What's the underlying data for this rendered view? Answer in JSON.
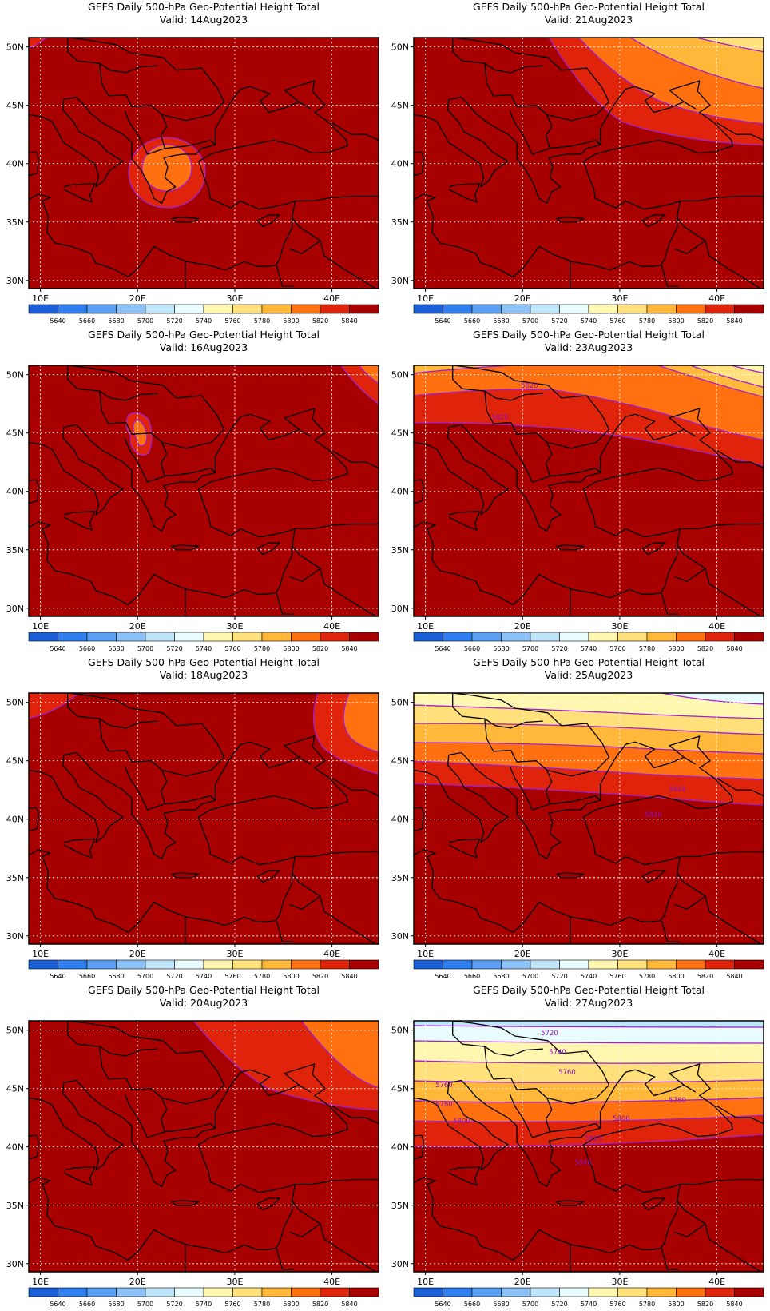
{
  "panel_title": "GEFS Daily 500-hPa Geo-Potential Height Total",
  "x_ticks": [
    "10E",
    "20E",
    "30E",
    "40E"
  ],
  "y_ticks": [
    "50N",
    "45N",
    "40N",
    "35N",
    "30N"
  ],
  "colorbar": {
    "levels": [
      "5640",
      "5660",
      "5680",
      "5700",
      "5720",
      "5740",
      "5760",
      "5780",
      "5800",
      "5820",
      "5840"
    ],
    "colors": [
      "#1a5fd6",
      "#2f7ff0",
      "#5aa0f5",
      "#8cc2f8",
      "#bfe5fb",
      "#e8fcfe",
      "#fff7b0",
      "#ffe07a",
      "#ffb83a",
      "#ff7010",
      "#e0240c",
      "#a80000"
    ]
  },
  "contour_line_color": "#a020d0",
  "panels": [
    {
      "valid": "Valid: 14Aug2023",
      "contour_labels": []
    },
    {
      "valid": "Valid: 21Aug2023",
      "contour_labels": []
    },
    {
      "valid": "Valid: 16Aug2023",
      "contour_labels": []
    },
    {
      "valid": "Valid: 23Aug2023",
      "contour_labels": [
        "5820",
        "5820"
      ]
    },
    {
      "valid": "Valid: 18Aug2023",
      "contour_labels": []
    },
    {
      "valid": "Valid: 25Aug2023",
      "contour_labels": [
        "5820",
        "5840"
      ]
    },
    {
      "valid": "Valid: 20Aug2023",
      "contour_labels": []
    },
    {
      "valid": "Valid: 27Aug2023",
      "contour_labels": [
        "5720",
        "5740",
        "5760",
        "5760",
        "5780",
        "5780",
        "5800",
        "5800",
        "5820",
        "5840"
      ]
    }
  ]
}
